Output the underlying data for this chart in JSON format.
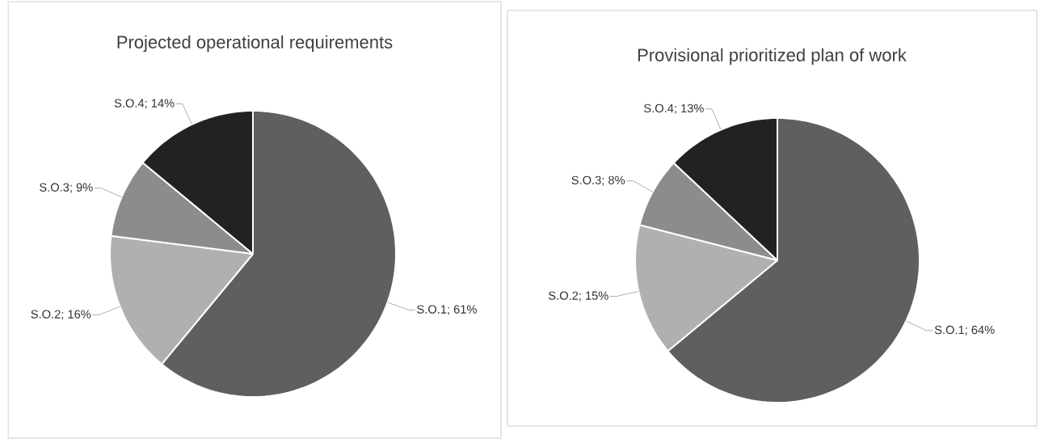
{
  "chart_data": [
    {
      "type": "pie",
      "title": "Projected operational requirements",
      "categories": [
        "S.O.1; 61%",
        "S.O.2; 16%",
        "S.O.3; 9%",
        "S.O.4; 14%"
      ],
      "values": [
        61,
        16,
        9,
        14
      ],
      "colors": [
        "#5f5f5f",
        "#b0b0b0",
        "#8c8c8c",
        "#222222"
      ]
    },
    {
      "type": "pie",
      "title": "Provisional prioritized plan of work",
      "categories": [
        "S.O.1; 64%",
        "S.O.2; 15%",
        "S.O.3; 8%",
        "S.O.4; 13%"
      ],
      "values": [
        64,
        15,
        8,
        13
      ],
      "colors": [
        "#5f5f5f",
        "#b0b0b0",
        "#8c8c8c",
        "#222222"
      ]
    }
  ]
}
